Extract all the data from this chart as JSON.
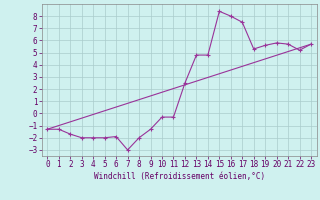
{
  "xlabel": "Windchill (Refroidissement éolien,°C)",
  "background_color": "#cff1ef",
  "grid_color": "#aacccc",
  "line_color": "#993399",
  "xlim": [
    -0.5,
    23.5
  ],
  "ylim": [
    -3.5,
    9.0
  ],
  "xticks": [
    0,
    1,
    2,
    3,
    4,
    5,
    6,
    7,
    8,
    9,
    10,
    11,
    12,
    13,
    14,
    15,
    16,
    17,
    18,
    19,
    20,
    21,
    22,
    23
  ],
  "yticks": [
    -3,
    -2,
    -1,
    0,
    1,
    2,
    3,
    4,
    5,
    6,
    7,
    8
  ],
  "series1_x": [
    0,
    1,
    2,
    3,
    4,
    5,
    6,
    7,
    8,
    9,
    10,
    11,
    12,
    13,
    14,
    15,
    16,
    17,
    18,
    19,
    20,
    21,
    22,
    23
  ],
  "series1_y": [
    -1.3,
    -1.3,
    -1.7,
    -2.0,
    -2.0,
    -2.0,
    -1.9,
    -3.0,
    -2.0,
    -1.3,
    -0.3,
    -0.3,
    2.5,
    4.8,
    4.8,
    8.4,
    8.0,
    7.5,
    5.3,
    5.6,
    5.8,
    5.7,
    5.2,
    5.7
  ],
  "series2_x": [
    0,
    23
  ],
  "series2_y": [
    -1.3,
    5.7
  ],
  "tick_fontsize": 5.5,
  "xlabel_fontsize": 5.5
}
